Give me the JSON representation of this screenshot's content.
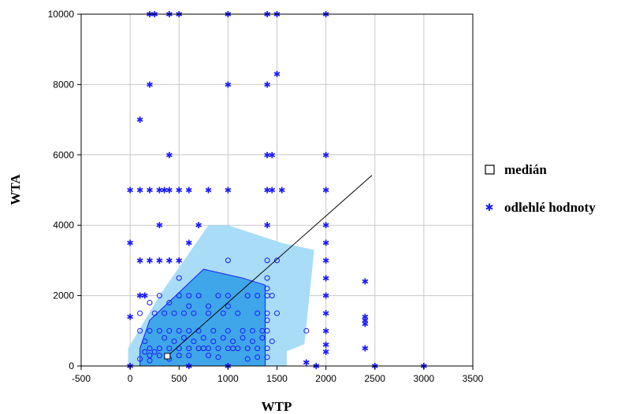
{
  "chart_data": {
    "type": "scatter",
    "xlabel": "WTP",
    "ylabel": "WTA",
    "xlim": [
      -500,
      3500
    ],
    "ylim": [
      0,
      10000
    ],
    "x_ticks": [
      "-500",
      "0",
      "500",
      "1000",
      "1500",
      "2000",
      "2500",
      "3000",
      "3500"
    ],
    "y_ticks": [
      "0",
      "2000",
      "4000",
      "6000",
      "8000",
      "10000"
    ],
    "grid": true,
    "legend_placement": "right",
    "colors": {
      "points": "#1a1aff",
      "bag_outer": "#a8dcf7",
      "bag_inner": "#3fa6ea",
      "grid": "#c8c8c8"
    },
    "legend": [
      {
        "label": "medián",
        "marker": "open-square"
      },
      {
        "label": "odlehlé hodnoty",
        "marker": "asterisk"
      }
    ],
    "median": {
      "x": 380,
      "y": 280
    },
    "bag_outer": [
      [
        -20,
        0
      ],
      [
        1600,
        0
      ],
      [
        1600,
        420
      ],
      [
        1780,
        620
      ],
      [
        1880,
        3300
      ],
      [
        1550,
        3500
      ],
      [
        1000,
        4000
      ],
      [
        800,
        4000
      ],
      [
        300,
        2000
      ],
      [
        -20,
        500
      ]
    ],
    "bag_inner": [
      [
        100,
        0
      ],
      [
        1380,
        0
      ],
      [
        1380,
        2300
      ],
      [
        1150,
        2500
      ],
      [
        750,
        2750
      ],
      [
        200,
        1300
      ],
      [
        100,
        500
      ]
    ],
    "fence_line": [
      [
        380,
        280
      ],
      [
        2470,
        5420
      ]
    ],
    "inner_points": [
      [
        100,
        1000
      ],
      [
        150,
        700
      ],
      [
        200,
        1000
      ],
      [
        250,
        1500
      ],
      [
        300,
        2000
      ],
      [
        350,
        1500
      ],
      [
        400,
        1000
      ],
      [
        450,
        1500
      ],
      [
        500,
        1000
      ],
      [
        550,
        1500
      ],
      [
        600,
        1000
      ],
      [
        650,
        1500
      ],
      [
        700,
        1000
      ],
      [
        750,
        500
      ],
      [
        800,
        1500
      ],
      [
        850,
        1000
      ],
      [
        900,
        500
      ],
      [
        950,
        1500
      ],
      [
        1000,
        1000
      ],
      [
        1050,
        500
      ],
      [
        1100,
        1500
      ],
      [
        1150,
        1000
      ],
      [
        1200,
        500
      ],
      [
        1250,
        1000
      ],
      [
        1300,
        1500
      ],
      [
        1350,
        1000
      ],
      [
        1400,
        500
      ],
      [
        1450,
        2000
      ],
      [
        1500,
        1500
      ],
      [
        200,
        500
      ],
      [
        300,
        500
      ],
      [
        400,
        500
      ],
      [
        500,
        500
      ],
      [
        600,
        500
      ],
      [
        700,
        500
      ],
      [
        800,
        500
      ],
      [
        1000,
        500
      ],
      [
        1100,
        500
      ],
      [
        1300,
        500
      ],
      [
        1400,
        1500
      ],
      [
        1400,
        2500
      ],
      [
        1400,
        3000
      ],
      [
        1500,
        3000
      ],
      [
        1400,
        2000
      ],
      [
        1300,
        2000
      ],
      [
        1000,
        3000
      ],
      [
        500,
        2500
      ],
      [
        1800,
        1000
      ],
      [
        1400,
        1000
      ],
      [
        1400,
        1300
      ],
      [
        300,
        1000
      ],
      [
        500,
        2000
      ],
      [
        600,
        2000
      ],
      [
        700,
        2000
      ],
      [
        900,
        2000
      ],
      [
        1000,
        2000
      ],
      [
        1200,
        2000
      ],
      [
        1400,
        2200
      ],
      [
        200,
        300
      ],
      [
        300,
        300
      ],
      [
        400,
        200
      ],
      [
        500,
        300
      ],
      [
        600,
        300
      ],
      [
        800,
        300
      ],
      [
        900,
        250
      ],
      [
        1200,
        200
      ],
      [
        1300,
        250
      ],
      [
        1400,
        250
      ],
      [
        100,
        200
      ],
      [
        200,
        150
      ],
      [
        250,
        400
      ],
      [
        150,
        400
      ],
      [
        350,
        800
      ],
      [
        450,
        700
      ],
      [
        550,
        800
      ],
      [
        650,
        700
      ],
      [
        750,
        800
      ],
      [
        850,
        700
      ],
      [
        950,
        800
      ],
      [
        1050,
        700
      ],
      [
        1150,
        800
      ],
      [
        1250,
        700
      ],
      [
        1350,
        800
      ],
      [
        1450,
        700
      ],
      [
        100,
        1500
      ],
      [
        200,
        1800
      ],
      [
        400,
        1800
      ],
      [
        600,
        1700
      ],
      [
        800,
        1700
      ],
      [
        1000,
        1700
      ]
    ],
    "outliers": [
      [
        200,
        10000
      ],
      [
        250,
        10000
      ],
      [
        400,
        10000
      ],
      [
        500,
        10000
      ],
      [
        1000,
        10000
      ],
      [
        1400,
        10000
      ],
      [
        1500,
        10000
      ],
      [
        2000,
        10000
      ],
      [
        1500,
        8300
      ],
      [
        200,
        8000
      ],
      [
        1000,
        8000
      ],
      [
        1400,
        8000
      ],
      [
        100,
        7000
      ],
      [
        400,
        6000
      ],
      [
        1400,
        6000
      ],
      [
        1450,
        6000
      ],
      [
        2000,
        6000
      ],
      [
        0,
        5000
      ],
      [
        100,
        5000
      ],
      [
        200,
        5000
      ],
      [
        300,
        5000
      ],
      [
        350,
        5000
      ],
      [
        400,
        5000
      ],
      [
        500,
        5000
      ],
      [
        600,
        5000
      ],
      [
        800,
        5000
      ],
      [
        1000,
        5000
      ],
      [
        1400,
        5000
      ],
      [
        1450,
        5000
      ],
      [
        1550,
        5000
      ],
      [
        2000,
        5000
      ],
      [
        300,
        4000
      ],
      [
        700,
        4000
      ],
      [
        1400,
        4000
      ],
      [
        2000,
        4000
      ],
      [
        0,
        3500
      ],
      [
        600,
        3500
      ],
      [
        2000,
        3500
      ],
      [
        100,
        3000
      ],
      [
        200,
        3000
      ],
      [
        300,
        3000
      ],
      [
        400,
        3000
      ],
      [
        500,
        3000
      ],
      [
        2000,
        3000
      ],
      [
        2000,
        2500
      ],
      [
        2400,
        2400
      ],
      [
        2000,
        2000
      ],
      [
        2000,
        1500
      ],
      [
        2400,
        1400
      ],
      [
        2400,
        1300
      ],
      [
        2400,
        1200
      ],
      [
        2000,
        1000
      ],
      [
        2400,
        500
      ],
      [
        2000,
        600
      ],
      [
        0,
        1400
      ],
      [
        100,
        2000
      ],
      [
        150,
        2000
      ],
      [
        2000,
        400
      ],
      [
        1800,
        100
      ],
      [
        2500,
        0
      ],
      [
        3000,
        0
      ],
      [
        1900,
        0
      ],
      [
        1000,
        0
      ],
      [
        600,
        0
      ],
      [
        0,
        0
      ]
    ]
  }
}
